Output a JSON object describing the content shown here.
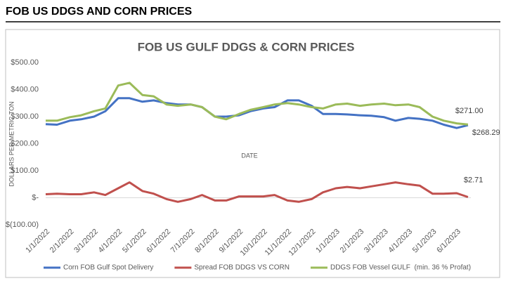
{
  "header": "FOB US DDGS AND CORN PRICES",
  "chart_data": {
    "type": "line",
    "title": "FOB US GULF DDGS & CORN PRICES",
    "x_label": "DATE",
    "y_label": "DOLLARS PER METRIC TON",
    "x": [
      "1/1/2022",
      "1/15/2022",
      "2/1/2022",
      "2/15/2022",
      "3/1/2022",
      "3/15/2022",
      "4/1/2022",
      "4/15/2022",
      "5/1/2022",
      "5/15/2022",
      "6/1/2022",
      "6/15/2022",
      "7/1/2022",
      "7/15/2022",
      "8/1/2022",
      "8/15/2022",
      "9/1/2022",
      "9/15/2022",
      "10/1/2022",
      "10/15/2022",
      "11/1/2022",
      "11/15/2022",
      "12/1/2022",
      "12/15/2022",
      "1/1/2023",
      "1/15/2023",
      "2/1/2023",
      "2/15/2023",
      "3/1/2023",
      "3/15/2023",
      "4/1/2023",
      "4/15/2023",
      "5/1/2023",
      "5/15/2023",
      "6/1/2023",
      "6/15/2023"
    ],
    "xticks": [
      "1/1/2022",
      "2/1/2022",
      "3/1/2022",
      "4/1/2022",
      "5/1/2022",
      "6/1/2022",
      "7/1/2022",
      "8/1/2022",
      "9/1/2022",
      "10/1/2022",
      "11/1/2022",
      "12/1/2022",
      "1/1/2023",
      "2/1/2023",
      "3/1/2023",
      "4/1/2023",
      "5/1/2023",
      "6/1/2023"
    ],
    "ylim": [
      -100,
      500
    ],
    "yticks": [
      {
        "value": -100,
        "label": "$(100.00)"
      },
      {
        "value": 0,
        "label": "$-"
      },
      {
        "value": 100,
        "label": "$100.00"
      },
      {
        "value": 200,
        "label": "$200.00"
      },
      {
        "value": 300,
        "label": "$300.00"
      },
      {
        "value": 400,
        "label": "$400.00"
      },
      {
        "value": 500,
        "label": "$500.00"
      }
    ],
    "grid": false,
    "series": [
      {
        "name": "Corn FOB Gulf Spot Delivery",
        "color": "#4472c4",
        "values": [
          272,
          270,
          285,
          290,
          300,
          320,
          368,
          368,
          355,
          360,
          350,
          345,
          345,
          335,
          300,
          300,
          305,
          320,
          330,
          335,
          360,
          360,
          340,
          310,
          310,
          308,
          305,
          303,
          298,
          285,
          295,
          292,
          285,
          270,
          258,
          268.29
        ],
        "value_labels": [
          null,
          null,
          null,
          null,
          null,
          null,
          null,
          null,
          null,
          null,
          null,
          null,
          null,
          null,
          null,
          null,
          null,
          null,
          null,
          null,
          null,
          null,
          null,
          null,
          null,
          null,
          null,
          null,
          null,
          null,
          null,
          null,
          null,
          null,
          null,
          "$268.29"
        ]
      },
      {
        "name": "Spread FOB DDGS VS CORN",
        "color": "#c0504d",
        "values": [
          13,
          15,
          13,
          13,
          20,
          10,
          35,
          57,
          25,
          15,
          -5,
          -15,
          -5,
          10,
          -10,
          -10,
          5,
          5,
          5,
          10,
          -10,
          -15,
          -5,
          20,
          35,
          40,
          35,
          42,
          50,
          57,
          50,
          45,
          15,
          15,
          17,
          2.71
        ],
        "value_labels": [
          null,
          null,
          null,
          null,
          null,
          null,
          null,
          null,
          null,
          null,
          null,
          null,
          null,
          null,
          null,
          null,
          null,
          null,
          null,
          null,
          null,
          null,
          null,
          null,
          null,
          null,
          null,
          null,
          null,
          null,
          null,
          null,
          null,
          null,
          null,
          "$2.71"
        ]
      },
      {
        "name": "DDGS FOB Vessel GULF  (min. 36 % Profat)",
        "color": "#9bbb59",
        "values": [
          285,
          285,
          298,
          305,
          320,
          330,
          415,
          425,
          380,
          375,
          345,
          340,
          345,
          335,
          300,
          290,
          310,
          325,
          335,
          345,
          350,
          345,
          335,
          330,
          345,
          348,
          340,
          345,
          348,
          342,
          345,
          335,
          300,
          285,
          275,
          271
        ],
        "value_labels": [
          null,
          null,
          null,
          null,
          null,
          null,
          null,
          null,
          null,
          null,
          null,
          null,
          null,
          null,
          null,
          null,
          null,
          null,
          null,
          null,
          null,
          null,
          null,
          null,
          null,
          null,
          null,
          null,
          null,
          null,
          null,
          null,
          null,
          null,
          null,
          "$271.00"
        ]
      }
    ]
  }
}
